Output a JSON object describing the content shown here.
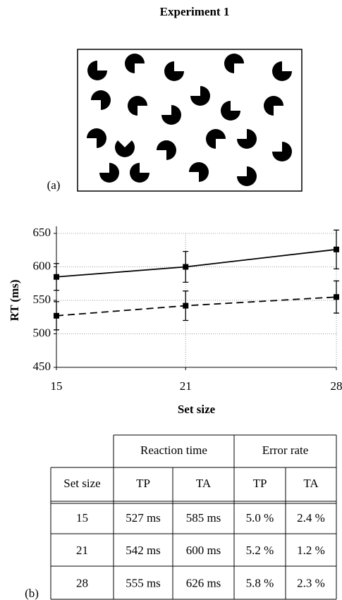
{
  "title": "Experiment 1",
  "panel_a_label": "(a)",
  "panel_b_label": "(b)",
  "chart_data": {
    "type": "line",
    "x": [
      15,
      21,
      28
    ],
    "xlim": [
      15,
      28
    ],
    "xticks": [
      15,
      21,
      28
    ],
    "ylim": [
      450,
      650
    ],
    "yticks": [
      450,
      500,
      550,
      600,
      650
    ],
    "xlabel": "Set size",
    "ylabel": "RT (ms)",
    "grid": true,
    "series": [
      {
        "color": "#000000",
        "dash": "solid",
        "values": [
          585,
          600,
          626
        ],
        "errors": [
          20,
          23,
          29
        ]
      },
      {
        "color": "#000000",
        "dash": "dashed",
        "values": [
          527,
          542,
          555
        ],
        "errors": [
          21,
          22,
          24
        ]
      }
    ]
  },
  "table": {
    "group_headers": [
      "Reaction time",
      "Error rate"
    ],
    "columns": [
      "Set size",
      "TP",
      "TA",
      "TP",
      "TA"
    ],
    "rows": [
      [
        "15",
        "527 ms",
        "585 ms",
        "5.0 %",
        "2.4 %"
      ],
      [
        "21",
        "542 ms",
        "600 ms",
        "5.2 %",
        "1.2 %"
      ],
      [
        "28",
        "555 ms",
        "626 ms",
        "5.8 %",
        "2.3 %"
      ]
    ]
  }
}
